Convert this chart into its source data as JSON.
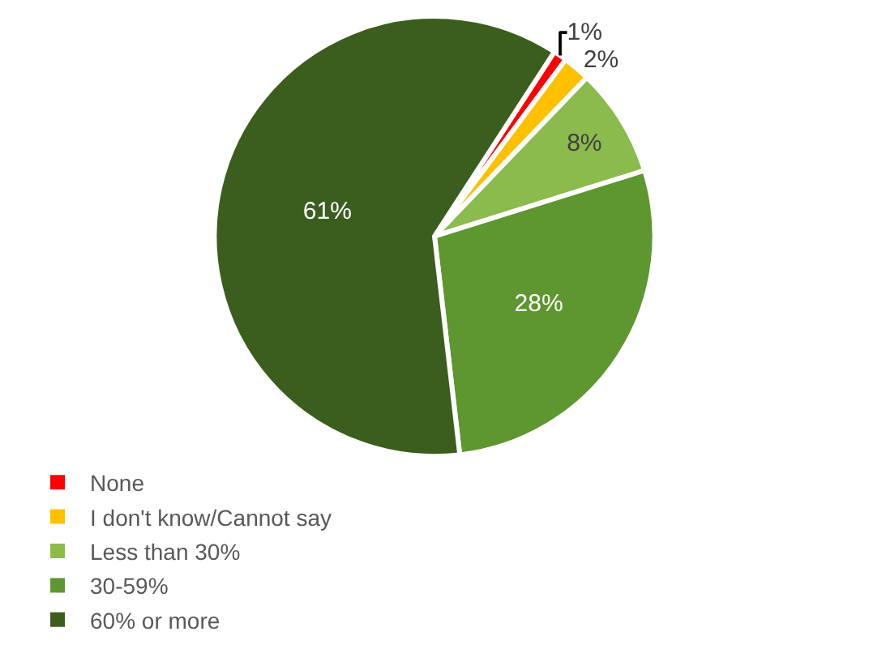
{
  "chart_data": {
    "type": "pie",
    "categories": [
      "None",
      "I don't know/Cannot say",
      "Less than 30%",
      "30-59%",
      "60% or more"
    ],
    "values": [
      1,
      2,
      8,
      28,
      61
    ],
    "value_labels": [
      "1%",
      "2%",
      "8%",
      "28%",
      "61%"
    ],
    "colors": [
      "#ff0000",
      "#ffc000",
      "#8bbb4c",
      "#5e9630",
      "#3b5e1f"
    ],
    "legend": "bottom"
  }
}
